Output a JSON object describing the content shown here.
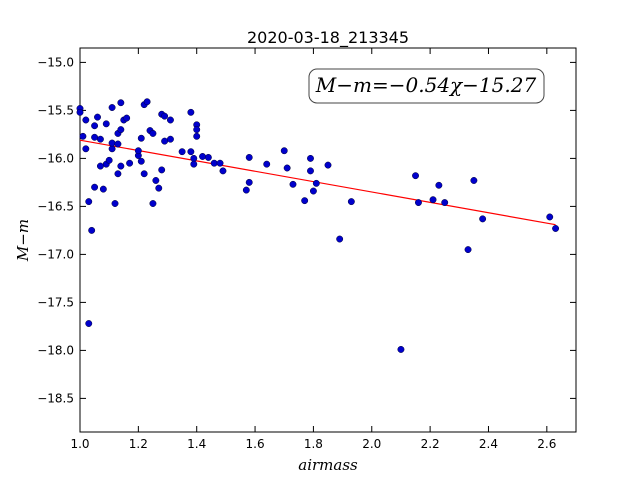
{
  "chart_data": {
    "type": "scatter",
    "title": "2020-03-18_213345",
    "xlabel": "airmass",
    "ylabel": "M−m",
    "xlim": [
      1.0,
      2.7
    ],
    "ylim": [
      -18.85,
      -14.85
    ],
    "y_inverted": true,
    "xticks": [
      1.0,
      1.2,
      1.4,
      1.6,
      1.8,
      2.0,
      2.2,
      2.4,
      2.6
    ],
    "xtick_labels": [
      "1.0",
      "1.2",
      "1.4",
      "1.6",
      "1.8",
      "2.0",
      "2.2",
      "2.4",
      "2.6"
    ],
    "yticks": [
      -15.0,
      -15.5,
      -16.0,
      -16.5,
      -17.0,
      -17.5,
      -18.0,
      -18.5
    ],
    "ytick_labels": [
      "−15.0",
      "−15.5",
      "−16.0",
      "−16.5",
      "−17.0",
      "−17.5",
      "−18.0",
      "−18.5"
    ],
    "grid": false,
    "annotation": "M−m=−0.54χ−15.27",
    "annotation_placement": "top-right",
    "point_color": "#0000cc",
    "fit_color": "#ff0000",
    "fit": {
      "slope": -0.54,
      "intercept": -15.27,
      "x_range": [
        1.0,
        2.63
      ]
    },
    "points": [
      [
        1.0,
        -15.48
      ],
      [
        1.0,
        -15.52
      ],
      [
        1.01,
        -15.77
      ],
      [
        1.02,
        -15.9
      ],
      [
        1.02,
        -15.6
      ],
      [
        1.03,
        -16.45
      ],
      [
        1.03,
        -17.72
      ],
      [
        1.04,
        -16.75
      ],
      [
        1.05,
        -16.3
      ],
      [
        1.05,
        -15.78
      ],
      [
        1.05,
        -15.66
      ],
      [
        1.06,
        -15.57
      ],
      [
        1.07,
        -16.08
      ],
      [
        1.07,
        -15.8
      ],
      [
        1.08,
        -16.32
      ],
      [
        1.09,
        -15.64
      ],
      [
        1.09,
        -16.06
      ],
      [
        1.1,
        -16.02
      ],
      [
        1.11,
        -15.9
      ],
      [
        1.11,
        -15.84
      ],
      [
        1.11,
        -15.47
      ],
      [
        1.12,
        -16.47
      ],
      [
        1.13,
        -15.74
      ],
      [
        1.13,
        -15.85
      ],
      [
        1.13,
        -16.16
      ],
      [
        1.14,
        -16.08
      ],
      [
        1.14,
        -15.7
      ],
      [
        1.14,
        -15.42
      ],
      [
        1.15,
        -15.6
      ],
      [
        1.16,
        -15.58
      ],
      [
        1.17,
        -16.05
      ],
      [
        1.2,
        -15.97
      ],
      [
        1.2,
        -15.92
      ],
      [
        1.21,
        -15.79
      ],
      [
        1.21,
        -16.03
      ],
      [
        1.22,
        -15.44
      ],
      [
        1.23,
        -15.41
      ],
      [
        1.22,
        -16.16
      ],
      [
        1.24,
        -15.71
      ],
      [
        1.25,
        -16.47
      ],
      [
        1.25,
        -15.74
      ],
      [
        1.26,
        -16.23
      ],
      [
        1.27,
        -16.31
      ],
      [
        1.28,
        -15.54
      ],
      [
        1.29,
        -15.56
      ],
      [
        1.28,
        -16.12
      ],
      [
        1.29,
        -15.82
      ],
      [
        1.31,
        -15.6
      ],
      [
        1.31,
        -15.8
      ],
      [
        1.35,
        -15.93
      ],
      [
        1.38,
        -15.93
      ],
      [
        1.38,
        -15.52
      ],
      [
        1.39,
        -16.0
      ],
      [
        1.39,
        -16.06
      ],
      [
        1.4,
        -15.65
      ],
      [
        1.4,
        -15.7
      ],
      [
        1.4,
        -15.77
      ],
      [
        1.42,
        -15.98
      ],
      [
        1.44,
        -15.99
      ],
      [
        1.46,
        -16.05
      ],
      [
        1.48,
        -16.05
      ],
      [
        1.49,
        -16.13
      ],
      [
        1.57,
        -16.33
      ],
      [
        1.58,
        -16.25
      ],
      [
        1.58,
        -15.99
      ],
      [
        1.64,
        -16.06
      ],
      [
        1.7,
        -15.92
      ],
      [
        1.71,
        -16.1
      ],
      [
        1.73,
        -16.27
      ],
      [
        1.77,
        -16.44
      ],
      [
        1.79,
        -16.13
      ],
      [
        1.79,
        -16.0
      ],
      [
        1.8,
        -16.34
      ],
      [
        1.81,
        -16.26
      ],
      [
        1.85,
        -16.07
      ],
      [
        1.89,
        -16.84
      ],
      [
        1.93,
        -16.45
      ],
      [
        2.1,
        -17.99
      ],
      [
        2.15,
        -16.18
      ],
      [
        2.16,
        -16.46
      ],
      [
        2.21,
        -16.43
      ],
      [
        2.23,
        -16.28
      ],
      [
        2.25,
        -16.46
      ],
      [
        2.33,
        -16.95
      ],
      [
        2.35,
        -16.23
      ],
      [
        2.38,
        -16.63
      ],
      [
        2.61,
        -16.61
      ],
      [
        2.63,
        -16.73
      ]
    ]
  }
}
